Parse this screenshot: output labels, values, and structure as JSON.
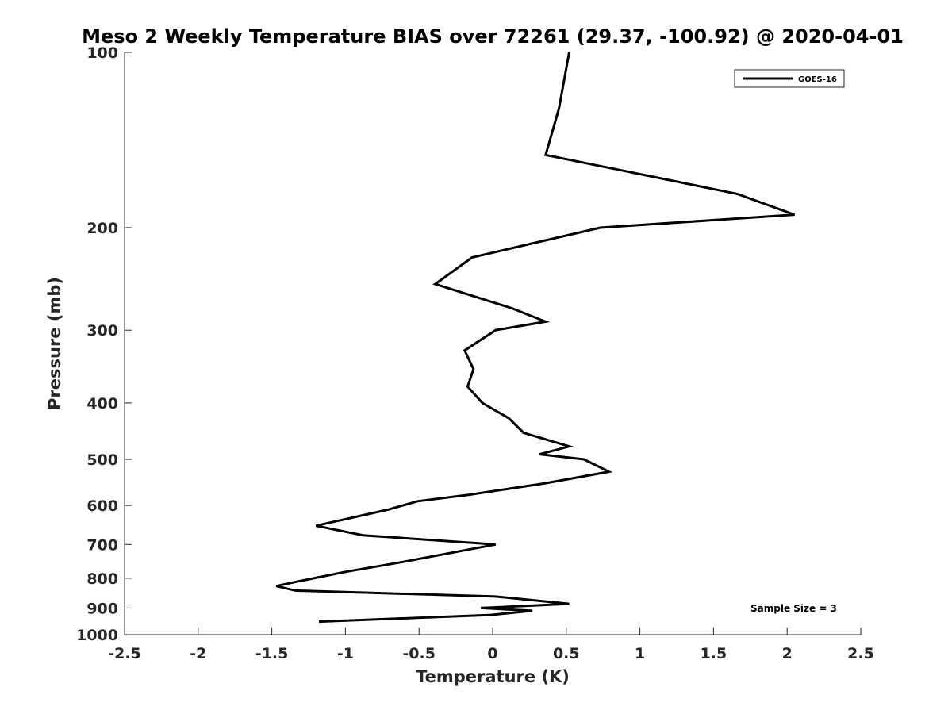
{
  "chart_data": {
    "type": "line",
    "title": "Meso 2 Weekly Temperature BIAS over 72261 (29.37, -100.92) @ 2020-04-01",
    "xlabel": "Temperature (K)",
    "ylabel": "Pressure (mb)",
    "xlim": [
      -2.5,
      2.5
    ],
    "ylim": [
      100,
      1000
    ],
    "yscale": "log",
    "yreversed": true,
    "xticks": [
      -2.5,
      -2,
      -1.5,
      -1,
      -0.5,
      0,
      0.5,
      1,
      1.5,
      2,
      2.5
    ],
    "xtick_labels": [
      "-2.5",
      "-2",
      "-1.5",
      "-1",
      "-0.5",
      "0",
      "0.5",
      "1",
      "1.5",
      "2",
      "2.5"
    ],
    "yticks": [
      100,
      200,
      300,
      400,
      500,
      600,
      700,
      800,
      900,
      1000
    ],
    "ytick_labels": [
      "100",
      "200",
      "300",
      "400",
      "500",
      "600",
      "700",
      "800",
      "900",
      "1000"
    ],
    "legend": {
      "entries": [
        "GOES-16"
      ],
      "location": "top-right"
    },
    "annotation": "Sample Size = 3",
    "series": [
      {
        "name": "GOES-16",
        "color": "#000000",
        "points": [
          {
            "x": 0.52,
            "p": 100
          },
          {
            "x": 0.45,
            "p": 125
          },
          {
            "x": 0.36,
            "p": 150
          },
          {
            "x": 1.66,
            "p": 175
          },
          {
            "x": 2.05,
            "p": 190
          },
          {
            "x": 0.73,
            "p": 200
          },
          {
            "x": -0.14,
            "p": 225
          },
          {
            "x": -0.39,
            "p": 250
          },
          {
            "x": 0.13,
            "p": 275
          },
          {
            "x": 0.36,
            "p": 290
          },
          {
            "x": 0.02,
            "p": 300
          },
          {
            "x": -0.19,
            "p": 325
          },
          {
            "x": -0.13,
            "p": 350
          },
          {
            "x": -0.17,
            "p": 375
          },
          {
            "x": -0.07,
            "p": 400
          },
          {
            "x": 0.11,
            "p": 425
          },
          {
            "x": 0.21,
            "p": 450
          },
          {
            "x": 0.52,
            "p": 475
          },
          {
            "x": 0.32,
            "p": 490
          },
          {
            "x": 0.62,
            "p": 500
          },
          {
            "x": 0.79,
            "p": 525
          },
          {
            "x": 0.35,
            "p": 550
          },
          {
            "x": -0.16,
            "p": 575
          },
          {
            "x": -0.51,
            "p": 590
          },
          {
            "x": -0.71,
            "p": 610
          },
          {
            "x": -1.2,
            "p": 650
          },
          {
            "x": -0.88,
            "p": 675
          },
          {
            "x": 0.02,
            "p": 700
          },
          {
            "x": -0.61,
            "p": 750
          },
          {
            "x": -1.0,
            "p": 780
          },
          {
            "x": -1.32,
            "p": 810
          },
          {
            "x": -1.47,
            "p": 825
          },
          {
            "x": -1.34,
            "p": 840
          },
          {
            "x": 0.02,
            "p": 860
          },
          {
            "x": 0.52,
            "p": 885
          },
          {
            "x": -0.08,
            "p": 900
          },
          {
            "x": 0.27,
            "p": 910
          },
          {
            "x": -0.01,
            "p": 925
          },
          {
            "x": -1.18,
            "p": 950
          }
        ]
      }
    ]
  }
}
